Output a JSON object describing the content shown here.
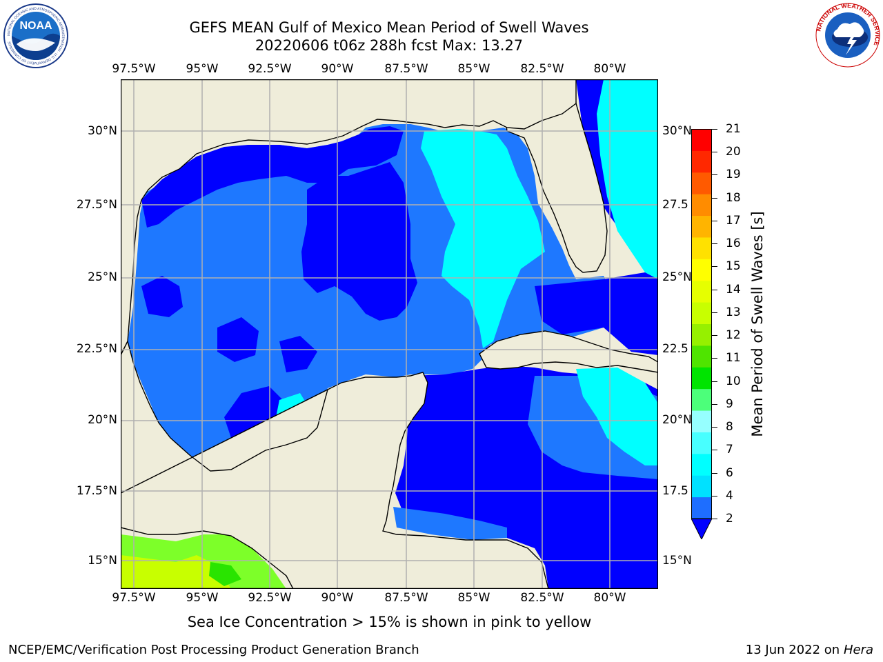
{
  "header": {
    "title_line1": "GEFS MEAN Gulf of Mexico Mean Period of Swell Waves",
    "title_line2": "20220606 t06z 288h fcst   Max: 13.27"
  },
  "map": {
    "longitude_labels": [
      "97.5°W",
      "95°W",
      "92.5°W",
      "90°W",
      "87.5°W",
      "85°W",
      "82.5°W",
      "80°W"
    ],
    "latitude_labels_left": [
      "30°N",
      "27.5°N",
      "25°N",
      "22.5°N",
      "20°N",
      "17.5°N",
      "15°N"
    ],
    "latitude_labels_right": [
      "30°N",
      "27.5",
      "25°N",
      "22.5",
      "20°N",
      "17.5",
      "15°N"
    ],
    "colors": {
      "land": "#efedda",
      "ocean_low": "#0000ff",
      "ocean_mid": "#1e78ff",
      "ocean_high": "#00ffff",
      "coastline": "#000000",
      "gridline": "#b0b0b0",
      "pacific_green": "#7dff29"
    }
  },
  "colorbar": {
    "title": "Mean Period of Swell Waves [s]",
    "ticks": [
      "21",
      "20",
      "19",
      "18",
      "17",
      "16",
      "15",
      "14",
      "13",
      "12",
      "11",
      "10",
      "9",
      "8",
      "7",
      "6",
      "4",
      "2"
    ],
    "colors": [
      "#1e6eff",
      "#00e1ff",
      "#00ffff",
      "#48ffff",
      "#96ffff",
      "#4cff7a",
      "#00e400",
      "#4fe400",
      "#96f000",
      "#c8ff00",
      "#e6ff00",
      "#ffff00",
      "#ffe100",
      "#ffb400",
      "#ff8c00",
      "#ff5a00",
      "#ff2800",
      "#ff0000"
    ],
    "under_color": "#0000ff"
  },
  "footer": {
    "note": "Sea Ice Concentration > 15% is shown in pink to yellow",
    "credit": "NCEP/EMC/Verification Post Processing Product Generation Branch",
    "date_prefix": "13 Jun 2022 on",
    "machine": "Hera"
  },
  "logos": {
    "noaa_text": "NOAA",
    "noaa_ring_text": "NATIONAL OCEANIC AND ATMOSPHERIC ADMINISTRATION · U.S. DEPARTMENT OF COMMERCE",
    "nws_ring_text": "NATIONAL WEATHER SERVICE"
  }
}
